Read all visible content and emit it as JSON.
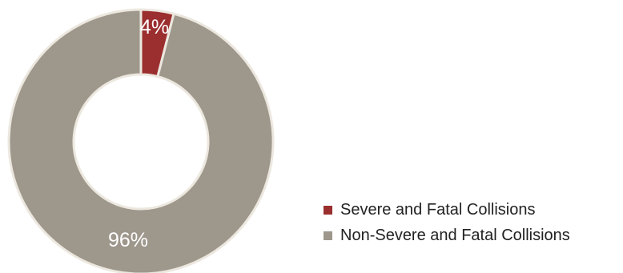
{
  "chart_data": {
    "type": "pie",
    "donut": true,
    "categories": [
      "Severe and Fatal Collisions",
      "Non-Severe and Fatal Collisions"
    ],
    "values": [
      4,
      96
    ],
    "data_labels": [
      "4%",
      "96%"
    ],
    "colors": [
      "#9b2e2e",
      "#9e978c"
    ],
    "border_color": "#ece8df",
    "legend_position": "bottom-right",
    "start_angle": "12 o'clock",
    "direction": "clockwise",
    "title": ""
  }
}
